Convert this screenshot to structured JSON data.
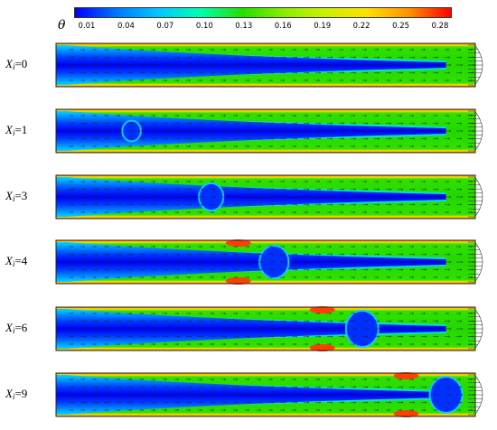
{
  "colorbar": {
    "symbol": "θ",
    "ticks": [
      "0.01",
      "0.04",
      "0.07",
      "0.10",
      "0.13",
      "0.16",
      "0.19",
      "0.22",
      "0.25",
      "0.28"
    ],
    "colors": [
      "#0000ff",
      "#0077ff",
      "#00c8ff",
      "#00ffb0",
      "#22e000",
      "#88ee00",
      "#ccf000",
      "#ffe000",
      "#ff9000",
      "#ff0000"
    ]
  },
  "panels": [
    {
      "var": "X",
      "sub": "i",
      "eq": "=0",
      "front": 0.0
    },
    {
      "var": "X",
      "sub": "i",
      "eq": "=1",
      "front": 0.18
    },
    {
      "var": "X",
      "sub": "i",
      "eq": "=3",
      "front": 0.37
    },
    {
      "var": "X",
      "sub": "i",
      "eq": "=4",
      "front": 0.52
    },
    {
      "var": "X",
      "sub": "i",
      "eq": "=6",
      "front": 0.73
    },
    {
      "var": "X",
      "sub": "i",
      "eq": "=9",
      "front": 0.93
    }
  ]
}
